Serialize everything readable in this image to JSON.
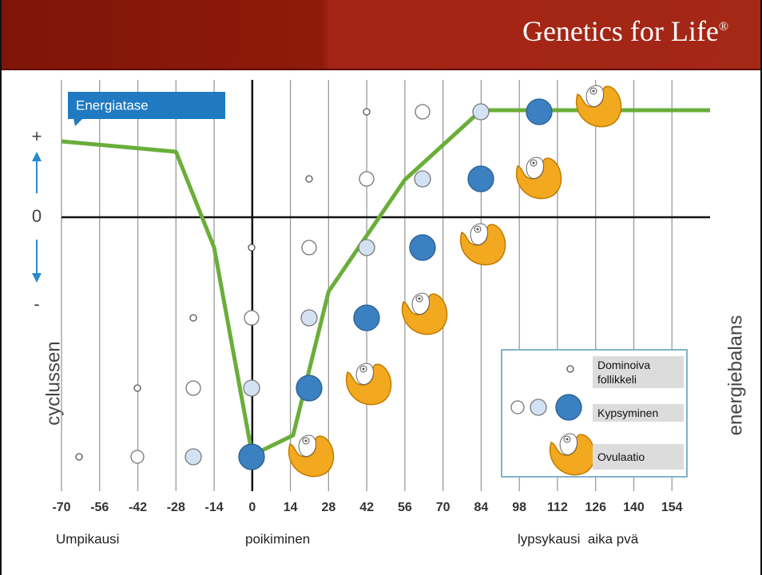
{
  "header": {
    "title": "Genetics for Life",
    "mark": "®"
  },
  "chart_data": {
    "type": "line",
    "ylabel": "cyclussen",
    "y2label": "energiebalans",
    "x": [
      -70,
      -28,
      -14,
      0,
      15,
      28,
      56,
      84,
      127,
      168
    ],
    "series": [
      {
        "name": "Energiatase",
        "color": "#6aae3a",
        "values": [
          0.95,
          0.82,
          -0.38,
          -2.98,
          -2.73,
          -0.93,
          0.47,
          1.34,
          1.34,
          1.34
        ]
      }
    ],
    "xlim": [
      -70,
      168
    ],
    "xticks": [
      -70,
      -56,
      -42,
      -28,
      -14,
      0,
      14,
      28,
      42,
      56,
      70,
      84,
      98,
      112,
      126,
      140,
      154
    ],
    "ylim": [
      -3.43,
      1.72
    ],
    "yticks": [
      {
        "value": 1,
        "label": "+"
      },
      0,
      {
        "value": -1.1,
        "label": "-"
      }
    ],
    "grid": true,
    "legend": [
      "Dominoiva follikkeli",
      "Kypsyminen",
      "Ovulaatio"
    ],
    "annotations": [
      "Umpikausi",
      "poikiminen",
      "lypsykausi  aika pvä"
    ]
  }
}
